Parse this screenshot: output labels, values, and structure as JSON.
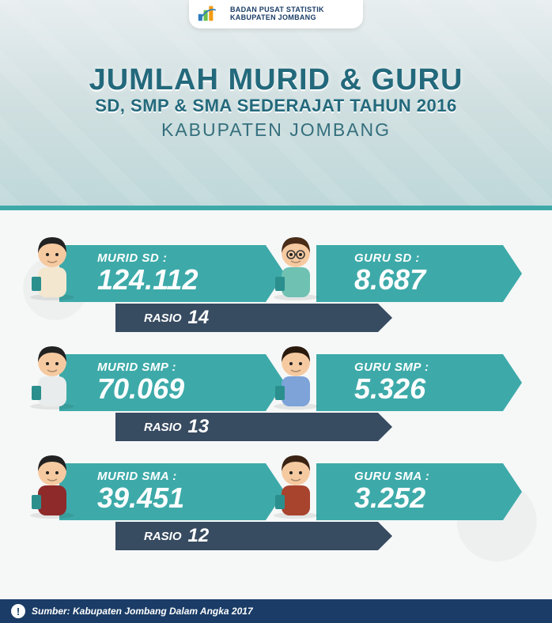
{
  "colors": {
    "teal": "#3daaa9",
    "teal_dark": "#2b8f8e",
    "navy": "#374b61",
    "navy_dark": "#2c3c4d",
    "brand_navy": "#1a3c66",
    "title_color": "#23697c",
    "bg_top_from": "#e8eef0",
    "bg_top_to": "#bfd8da",
    "body_bg": "#f6f8f8"
  },
  "header": {
    "line1": "BADAN PUSAT STATISTIK",
    "line2": "KABUPATEN JOMBANG",
    "logo_colors": {
      "blue": "#2e7bbf",
      "green": "#6cbf4b",
      "orange": "#f39c12"
    }
  },
  "title": {
    "line1": "JUMLAH MURID & GURU",
    "line2": "SD, SMP & SMA SEDERAJAT TAHUN 2016",
    "line3": "KABUPATEN JOMBANG",
    "font_sizes": {
      "line1": 38,
      "line2": 22,
      "line3": 23
    }
  },
  "rows": [
    {
      "murid_label": "MURID SD :",
      "murid_value": "124.112",
      "guru_label": "GURU SD :",
      "guru_value": "8.687",
      "ratio_label": "RASIO",
      "ratio_value": "14",
      "student_shirt": "#f4e7cf",
      "student_hair": "#222",
      "teacher_shirt": "#6fc1b2",
      "teacher_hair": "#4a2d18",
      "teacher_glasses": true
    },
    {
      "murid_label": "MURID SMP :",
      "murid_value": "70.069",
      "guru_label": "GURU SMP :",
      "guru_value": "5.326",
      "ratio_label": "RASIO",
      "ratio_value": "13",
      "student_shirt": "#e9ecec",
      "student_hair": "#222",
      "teacher_shirt": "#7da3d8",
      "teacher_hair": "#2a1a0d",
      "teacher_glasses": false
    },
    {
      "murid_label": "MURID SMA :",
      "murid_value": "39.451",
      "guru_label": "GURU SMA :",
      "guru_value": "3.252",
      "ratio_label": "RASIO",
      "ratio_value": "12",
      "student_shirt": "#8e2a2a",
      "student_hair": "#222",
      "teacher_shirt": "#a8442e",
      "teacher_hair": "#3a2313",
      "teacher_glasses": false
    }
  ],
  "footer": {
    "source": "Sumber: Kabupaten Jombang Dalam Angka 2017",
    "badge": "!"
  },
  "chevron_style": {
    "teal_fill": "#3daaa9",
    "teal_shadow": "#2b8f8e",
    "navy_fill": "#374b61"
  }
}
